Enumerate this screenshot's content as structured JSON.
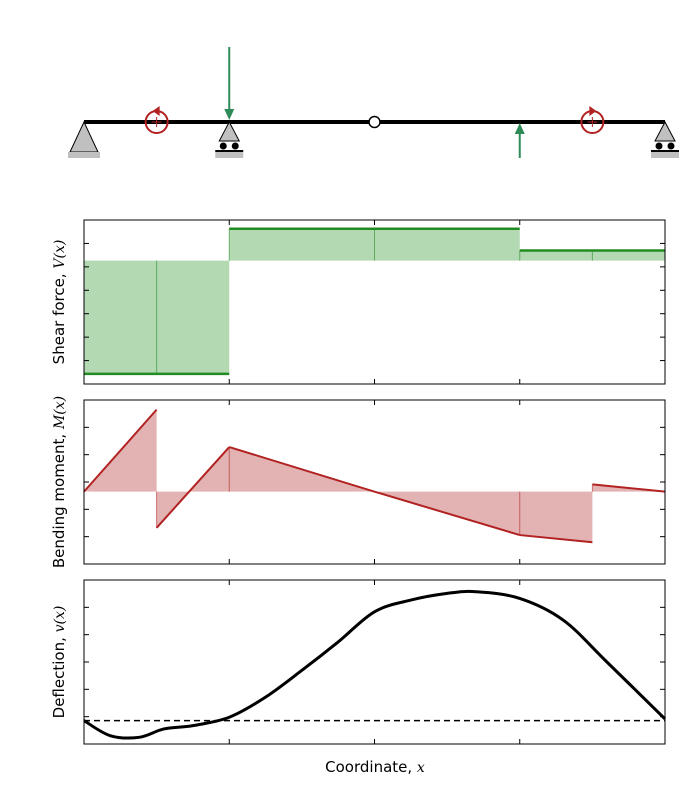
{
  "beam": {
    "length": 4,
    "supports": [
      {
        "type": "pin",
        "x": 0
      },
      {
        "type": "roller",
        "x": 1
      },
      {
        "type": "roller",
        "x": 4
      }
    ],
    "hinges": [
      2
    ],
    "point_loads": [
      {
        "x": 1,
        "direction": "down"
      },
      {
        "x": 3,
        "direction": "up"
      }
    ],
    "moments": [
      {
        "x": 0.5,
        "direction": "counterclockwise"
      },
      {
        "x": 3.5,
        "direction": "clockwise"
      }
    ],
    "colors": {
      "beam": "#000000",
      "support": "#c0c0c0",
      "load": "#2e8b57",
      "moment": "#b22222"
    }
  },
  "axes": {
    "shear_ylabel": "Shear force, ",
    "shear_ylabel_math": "V(x)",
    "moment_ylabel": "Bending moment, ",
    "moment_ylabel_math": "M(x)",
    "deflection_ylabel": "Deflection, ",
    "deflection_ylabel_math": "v(x)",
    "xlabel": "Coordinate, ",
    "xlabel_math": "x"
  },
  "chart_data": [
    {
      "type": "line",
      "name": "shear",
      "fill": true,
      "color": "#228b22",
      "fill_color": "#b3d9b3",
      "x": [
        0,
        1,
        1,
        3,
        3,
        4
      ],
      "y": [
        -0.78,
        -0.78,
        0.22,
        0.22,
        0.07,
        0.07
      ],
      "ylim": [
        -0.85,
        0.28
      ],
      "xlim": [
        0,
        4
      ]
    },
    {
      "type": "line",
      "name": "moment",
      "fill": true,
      "color": "#b22222",
      "fill_color": "#e3b3b3",
      "x": [
        0,
        0.5,
        0.5,
        1,
        2,
        3,
        3.5,
        3.5,
        4
      ],
      "y": [
        0,
        0.34,
        -0.15,
        0.185,
        0,
        -0.18,
        -0.21,
        0.03,
        0
      ],
      "ylim": [
        -0.3,
        0.38
      ],
      "xlim": [
        0,
        4
      ]
    },
    {
      "type": "line",
      "name": "deflection",
      "color": "#000000",
      "x": [
        0,
        0.18,
        0.38,
        0.55,
        0.75,
        1,
        1.25,
        1.5,
        1.75,
        2,
        2.25,
        2.5,
        2.7,
        3,
        3.3,
        3.6,
        4
      ],
      "y": [
        0,
        -0.09,
        -0.1,
        -0.05,
        -0.03,
        0.02,
        0.14,
        0.3,
        0.47,
        0.65,
        0.72,
        0.76,
        0.77,
        0.73,
        0.6,
        0.35,
        0.01
      ],
      "ylim": [
        -0.14,
        0.84
      ],
      "xlim": [
        0,
        4
      ],
      "baseline": 0
    }
  ]
}
